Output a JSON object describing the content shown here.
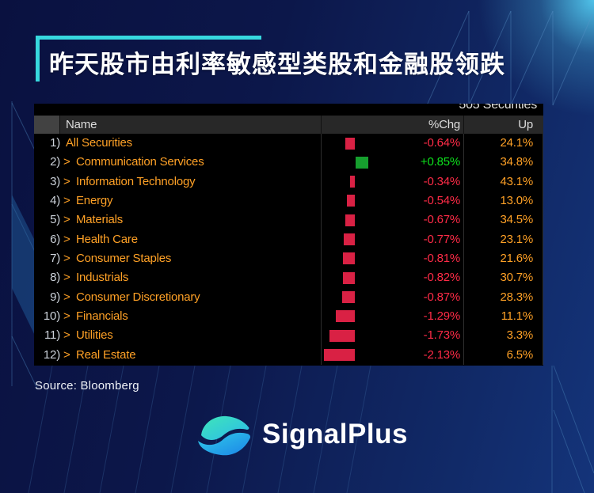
{
  "title": {
    "text": "昨天股市由利率敏感型类股和金融股领跌"
  },
  "colors": {
    "accent_cyan": "#37d8de",
    "orange": "#ffa126",
    "red_text": "#ff2b47",
    "green_text": "#0ce11c",
    "red_bar": "#d92144",
    "green_bar": "#169f2e",
    "number_gray": "#ccd2da"
  },
  "table": {
    "securities_count_label": "505 Securities",
    "columns": {
      "name": "Name",
      "chg": "%Chg",
      "up": "Up"
    },
    "rows": [
      {
        "num": "1)",
        "arrow": false,
        "name": "All Securities",
        "chg": "-0.64%",
        "chg_value": -0.64,
        "up": "24.1%"
      },
      {
        "num": "2)",
        "arrow": true,
        "name": "Communication Services",
        "chg": "+0.85%",
        "chg_value": 0.85,
        "up": "34.8%"
      },
      {
        "num": "3)",
        "arrow": true,
        "name": "Information Technology",
        "chg": "-0.34%",
        "chg_value": -0.34,
        "up": "43.1%"
      },
      {
        "num": "4)",
        "arrow": true,
        "name": "Energy",
        "chg": "-0.54%",
        "chg_value": -0.54,
        "up": "13.0%"
      },
      {
        "num": "5)",
        "arrow": true,
        "name": "Materials",
        "chg": "-0.67%",
        "chg_value": -0.67,
        "up": "34.5%"
      },
      {
        "num": "6)",
        "arrow": true,
        "name": "Health Care",
        "chg": "-0.77%",
        "chg_value": -0.77,
        "up": "23.1%"
      },
      {
        "num": "7)",
        "arrow": true,
        "name": "Consumer Staples",
        "chg": "-0.81%",
        "chg_value": -0.81,
        "up": "21.6%"
      },
      {
        "num": "8)",
        "arrow": true,
        "name": "Industrials",
        "chg": "-0.82%",
        "chg_value": -0.82,
        "up": "30.7%"
      },
      {
        "num": "9)",
        "arrow": true,
        "name": "Consumer Discretionary",
        "chg": "-0.87%",
        "chg_value": -0.87,
        "up": "28.3%"
      },
      {
        "num": "10)",
        "arrow": true,
        "name": "Financials",
        "chg": "-1.29%",
        "chg_value": -1.29,
        "up": "11.1%"
      },
      {
        "num": "11)",
        "arrow": true,
        "name": "Utilities",
        "chg": "-1.73%",
        "chg_value": -1.73,
        "up": "3.3%"
      },
      {
        "num": "12)",
        "arrow": true,
        "name": "Real Estate",
        "chg": "-2.13%",
        "chg_value": -2.13,
        "up": "6.5%"
      }
    ]
  },
  "source": {
    "label": "Source: Bloomberg"
  },
  "logo": {
    "text": "SignalPlus"
  },
  "chart_data": {
    "type": "bar",
    "title": "昨天股市由利率敏感型类股和金融股领跌",
    "annotation": "505 Securities",
    "categories": [
      "All Securities",
      "Communication Services",
      "Information Technology",
      "Energy",
      "Materials",
      "Health Care",
      "Consumer Staples",
      "Industrials",
      "Consumer Discretionary",
      "Financials",
      "Utilities",
      "Real Estate"
    ],
    "series": [
      {
        "name": "%Chg",
        "values": [
          -0.64,
          0.85,
          -0.34,
          -0.54,
          -0.67,
          -0.77,
          -0.81,
          -0.82,
          -0.87,
          -1.29,
          -1.73,
          -2.13
        ]
      },
      {
        "name": "Up",
        "values": [
          24.1,
          34.8,
          43.1,
          13.0,
          34.5,
          23.1,
          21.6,
          30.7,
          28.3,
          11.1,
          3.3,
          6.5
        ]
      }
    ],
    "bar_orientation": "horizontal",
    "negative_color": "#d92144",
    "positive_color": "#169f2e",
    "source": "Bloomberg"
  }
}
